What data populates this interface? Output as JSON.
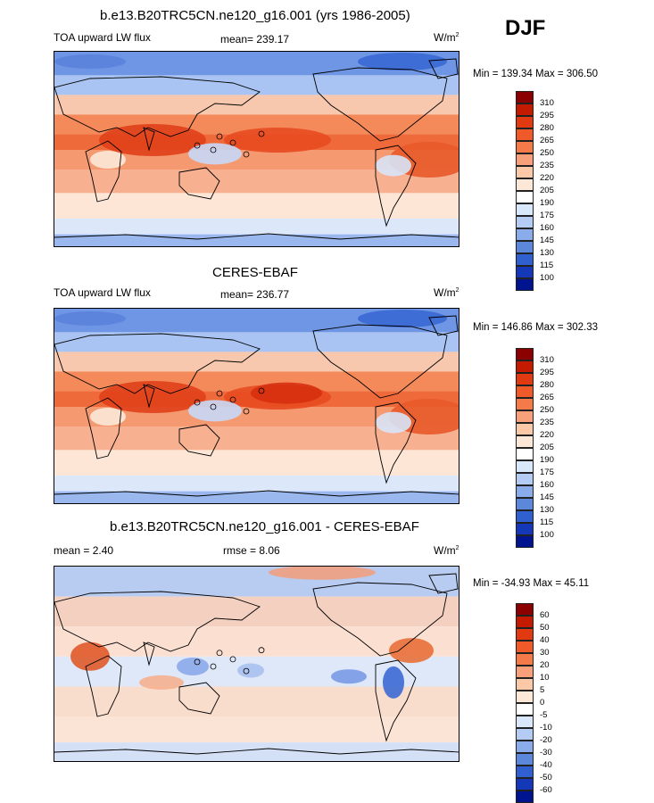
{
  "season": "DJF",
  "panels": [
    {
      "title": "b.e13.B20TRC5CN.ne120_g16.001 (yrs 1986-2005)",
      "variable": "TOA upward LW flux",
      "stat": "mean= 239.17",
      "units": "W/m",
      "minmax": "Min = 139.34 Max = 306.50",
      "ticks": [
        "310",
        "295",
        "280",
        "265",
        "250",
        "235",
        "220",
        "205",
        "190",
        "175",
        "160",
        "145",
        "130",
        "115",
        "100"
      ],
      "colors": [
        "#8b0000",
        "#c41a00",
        "#e23a10",
        "#f05a28",
        "#f47a4a",
        "#f8a07a",
        "#fbc8a8",
        "#fde8d8",
        "#ffffff",
        "#d8e8fa",
        "#b4ccf4",
        "#8aacea",
        "#5c88dc",
        "#3060d0",
        "#1438b8",
        "#001490"
      ]
    },
    {
      "title": "CERES-EBAF",
      "variable": "TOA upward LW flux",
      "stat": "mean= 236.77",
      "units": "W/m",
      "minmax": "Min = 146.86 Max = 302.33",
      "ticks": [
        "310",
        "295",
        "280",
        "265",
        "250",
        "235",
        "220",
        "205",
        "190",
        "175",
        "160",
        "145",
        "130",
        "115",
        "100"
      ],
      "colors": [
        "#8b0000",
        "#c41a00",
        "#e23a10",
        "#f05a28",
        "#f47a4a",
        "#f8a07a",
        "#fbc8a8",
        "#fde8d8",
        "#ffffff",
        "#d8e8fa",
        "#b4ccf4",
        "#8aacea",
        "#5c88dc",
        "#3060d0",
        "#1438b8",
        "#001490"
      ]
    },
    {
      "title": "b.e13.B20TRC5CN.ne120_g16.001 - CERES-EBAF",
      "stat": "mean =   2.40",
      "rmse": "rmse =   8.06",
      "units": "W/m",
      "minmax": "Min = -34.93 Max =  45.11",
      "ticks": [
        "60",
        "50",
        "40",
        "30",
        "20",
        "10",
        "5",
        "0",
        "-5",
        "-10",
        "-20",
        "-30",
        "-40",
        "-50",
        "-60"
      ],
      "colors": [
        "#8b0000",
        "#c41a00",
        "#e23a10",
        "#f05a28",
        "#f47a4a",
        "#f8a07a",
        "#fbc8a8",
        "#fde8d8",
        "#ffffff",
        "#d8e8fa",
        "#b4ccf4",
        "#8aacea",
        "#5c88dc",
        "#3060d0",
        "#1438b8",
        "#001490"
      ]
    }
  ],
  "units_exponent": "2"
}
